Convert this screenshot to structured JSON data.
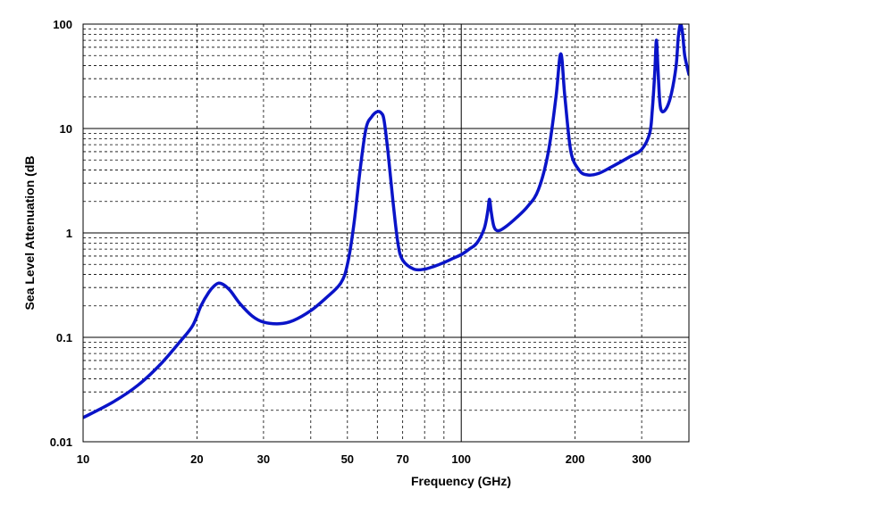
{
  "chart_data": {
    "type": "line",
    "title": "",
    "xlabel": "Frequency (GHz)",
    "ylabel": "Sea Level Attenuation (dB",
    "xscale": "log",
    "yscale": "log",
    "xlim": [
      10,
      400
    ],
    "ylim": [
      0.01,
      100
    ],
    "grid": true,
    "legend": "none",
    "x_ticks": [
      10,
      20,
      30,
      50,
      70,
      100,
      200,
      300
    ],
    "x_tick_labels": [
      "10",
      "20",
      "30",
      "50",
      "70",
      "100",
      "200",
      "300"
    ],
    "y_ticks": [
      0.01,
      0.1,
      1,
      10,
      100
    ],
    "y_tick_labels": [
      "0.01",
      "0.1",
      "1",
      "10",
      "100"
    ],
    "line_color": "#0a14c8",
    "series": [
      {
        "x": [
          10,
          12,
          14,
          16,
          18,
          19.5,
          20.5,
          21.5,
          22.2,
          22.8,
          23.5,
          24.5,
          26,
          28,
          30,
          33,
          36,
          40,
          44,
          48,
          50,
          52,
          54,
          56,
          58,
          60,
          61.5,
          62.5,
          64,
          66,
          68,
          70,
          75,
          80,
          85,
          90,
          95,
          100,
          105,
          110,
          115,
          117.5,
          118.75,
          120,
          122,
          125,
          130,
          140,
          150,
          160,
          170,
          178,
          183.3,
          188,
          195,
          205,
          215,
          230,
          250,
          280,
          300,
          315,
          320,
          325,
          328,
          331,
          335,
          340,
          350,
          360,
          370,
          375,
          380,
          385,
          390,
          400
        ],
        "y": [
          0.017,
          0.024,
          0.035,
          0.055,
          0.09,
          0.13,
          0.2,
          0.27,
          0.31,
          0.33,
          0.32,
          0.28,
          0.21,
          0.16,
          0.14,
          0.135,
          0.145,
          0.18,
          0.24,
          0.33,
          0.5,
          1.2,
          4,
          10,
          13,
          14.5,
          14,
          12,
          6,
          2,
          0.8,
          0.55,
          0.45,
          0.45,
          0.48,
          0.52,
          0.57,
          0.62,
          0.7,
          0.8,
          1.1,
          1.6,
          2.1,
          1.6,
          1.15,
          1.05,
          1.12,
          1.4,
          1.8,
          2.6,
          6,
          20,
          52,
          20,
          6,
          4,
          3.6,
          3.7,
          4.3,
          5.4,
          6.3,
          9,
          15,
          35,
          70,
          40,
          18,
          14.5,
          16,
          22,
          40,
          75,
          100,
          80,
          50,
          33
        ]
      }
    ]
  }
}
